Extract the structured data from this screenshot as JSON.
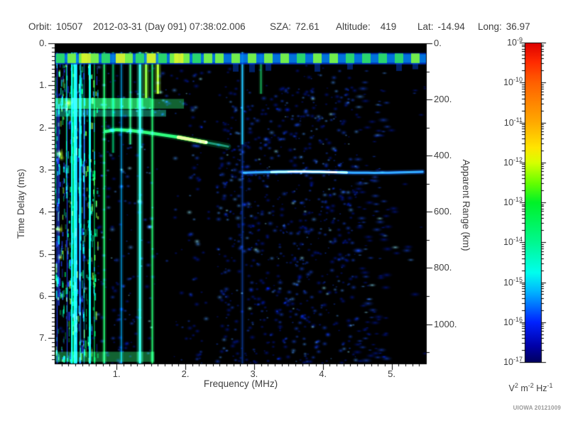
{
  "header": {
    "orbit_label": "Orbit:",
    "orbit_value": "10507",
    "datetime": "2012-03-31 (Day 091) 07:38:02.006",
    "sza_label": "SZA:",
    "sza_value": "72.61",
    "altitude_label": "Altitude:",
    "altitude_value": "419",
    "lat_label": "Lat:",
    "lat_value": "-14.94",
    "long_label": "Long:",
    "long_value": "36.97"
  },
  "footer": {
    "credit": "UIOWA 20121009"
  },
  "chart_data": {
    "type": "heatmap",
    "subtype": "radar-sounder-ionogram-spectrogram",
    "xlabel": "Frequency (MHz)",
    "ylabel": "Time Delay (ms)",
    "y2label": "Apparent Range (km)",
    "x_range_mhz": [
      0.1,
      5.5
    ],
    "x_ticks": [
      {
        "value": 1,
        "label": "1."
      },
      {
        "value": 2,
        "label": "2."
      },
      {
        "value": 3,
        "label": "3."
      },
      {
        "value": 4,
        "label": "4."
      },
      {
        "value": 5,
        "label": "5."
      }
    ],
    "y_range_ms": [
      0,
      7.6
    ],
    "y_ticks": [
      {
        "value": 0,
        "label": "0."
      },
      {
        "value": 1,
        "label": "1."
      },
      {
        "value": 2,
        "label": "2."
      },
      {
        "value": 3,
        "label": "3."
      },
      {
        "value": 4,
        "label": "4."
      },
      {
        "value": 5,
        "label": "5."
      },
      {
        "value": 6,
        "label": "6."
      },
      {
        "value": 7,
        "label": "7."
      }
    ],
    "y2_range_km": [
      0,
      1140
    ],
    "km_per_ms": 150,
    "y2_ticks": [
      {
        "value": 0,
        "label": "0."
      },
      {
        "value": 200,
        "label": "200."
      },
      {
        "value": 400,
        "label": "400."
      },
      {
        "value": 600,
        "label": "600."
      },
      {
        "value": 800,
        "label": "800."
      },
      {
        "value": 1000,
        "label": "1000."
      }
    ],
    "grid": false,
    "colorbar": {
      "scale": "log",
      "max_exponent": -9,
      "min_exponent": -17,
      "tick_exponents": [
        -9,
        -10,
        -11,
        -12,
        -13,
        -14,
        -15,
        -16,
        -17
      ],
      "units_parts": [
        {
          "base": "V",
          "exp": "2"
        },
        {
          "base": "m",
          "exp": "-2"
        },
        {
          "base": "Hz",
          "exp": "-1"
        }
      ],
      "gradient_stops": [
        {
          "pos": 0.0,
          "color": "#dd0000"
        },
        {
          "pos": 0.06,
          "color": "#ff2a00"
        },
        {
          "pos": 0.125,
          "color": "#ff6000"
        },
        {
          "pos": 0.25,
          "color": "#ffaa00"
        },
        {
          "pos": 0.33,
          "color": "#ffe600"
        },
        {
          "pos": 0.375,
          "color": "#d8ff00"
        },
        {
          "pos": 0.44,
          "color": "#66ff00"
        },
        {
          "pos": 0.5,
          "color": "#00f228"
        },
        {
          "pos": 0.625,
          "color": "#00f890"
        },
        {
          "pos": 0.72,
          "color": "#00ffee"
        },
        {
          "pos": 0.78,
          "color": "#00b4ff"
        },
        {
          "pos": 0.875,
          "color": "#0022ff"
        },
        {
          "pos": 0.95,
          "color": "#0000a8"
        },
        {
          "pos": 1.0,
          "color": "#000060"
        }
      ]
    },
    "features": {
      "seed": 20121009,
      "plot_background": "#000000",
      "top_gap_ms": [
        0,
        0.21
      ],
      "pulse_band": {
        "t0": 0.22,
        "t1": 0.5,
        "base_color": "rgba(0,60,220,0.8)",
        "cyan_color": "rgba(0,170,255,0.55)",
        "dash_colors": [
          "#2ee062",
          "#7dfc3c"
        ],
        "yellow_dash_color": "#d6f32a",
        "yellow_dash_freqs": [
          0.55,
          1.05,
          1.5,
          1.9
        ],
        "dense_below_mhz": 2.3,
        "drip_color": "rgba(0,80,255,0.45)"
      },
      "low_freq_noise": {
        "f0": 0.1,
        "f1": 0.72,
        "n_lines": 30,
        "n_segments": 520,
        "line_colors": [
          "#00e868",
          "#00ffcc",
          "#2040ff",
          "#90ff40"
        ]
      },
      "rfi_lines": [
        {
          "f": 0.82,
          "t0": 0.2,
          "t1": 7.6,
          "color": "#20d060",
          "w": 2,
          "a": 0.9
        },
        {
          "f": 0.95,
          "t0": 0.2,
          "t1": 2.6,
          "color": "#00c070",
          "w": 2,
          "a": 0.7
        },
        {
          "f": 1.07,
          "t0": 0.2,
          "t1": 7.6,
          "color": "#00b0ff",
          "w": 2,
          "a": 0.5
        },
        {
          "f": 1.2,
          "t0": 0.2,
          "t1": 2.4,
          "color": "#30e080",
          "w": 2,
          "a": 0.8
        },
        {
          "f": 1.34,
          "t0": 0.2,
          "t1": 7.6,
          "color": "#30ffd0",
          "w": 3,
          "a": 1.0
        },
        {
          "f": 1.43,
          "t0": 0.2,
          "t1": 1.3,
          "color": "#80ff40",
          "w": 3,
          "a": 0.9
        },
        {
          "f": 1.52,
          "t0": 0.2,
          "t1": 7.6,
          "color": "#20d060",
          "w": 2,
          "a": 0.85
        },
        {
          "f": 1.6,
          "t0": 0.2,
          "t1": 1.2,
          "color": "#a0ff30",
          "w": 3,
          "a": 0.9
        },
        {
          "f": 2.83,
          "t0": 0.2,
          "t1": 2.4,
          "color": "#20c0ff",
          "w": 2,
          "a": 0.8
        },
        {
          "f": 2.83,
          "t0": 2.4,
          "t1": 7.6,
          "color": "#1060ff",
          "w": 2,
          "a": 0.35
        },
        {
          "f": 3.1,
          "t0": 0.25,
          "t1": 1.2,
          "color": "#20ff80",
          "w": 2,
          "a": 0.5
        }
      ],
      "dark_bands": [
        {
          "f0": 1.56,
          "f1": 2.04,
          "t0": 1.7
        },
        {
          "f0": 2.24,
          "f1": 2.46,
          "t0": 0.5
        },
        {
          "f0": 4.95,
          "f1": 5.5,
          "t0": 0.5
        }
      ],
      "speckle": {
        "n": 3400,
        "palette": [
          "rgba(0,30,210,0.5)",
          "rgba(25,80,255,0.55)",
          "rgba(70,150,255,0.6)",
          "rgba(140,230,255,0.65)"
        ],
        "dense_f": [
          2.45,
          4.6
        ]
      },
      "horizontal_bands": [
        {
          "f0": 0.1,
          "f1": 1.5,
          "t0": 1.3,
          "t1": 1.56,
          "color": "#28dc6e",
          "alpha": 0.85
        },
        {
          "f0": 1.5,
          "f1": 1.98,
          "t0": 1.32,
          "t1": 1.55,
          "color": "#28dc6e",
          "alpha": 0.45
        },
        {
          "f0": 0.1,
          "f1": 1.72,
          "t0": 1.58,
          "t1": 1.74,
          "color": "#1ec8a0",
          "alpha": 0.5
        },
        {
          "f0": 0.1,
          "f1": 1.55,
          "t0": 7.32,
          "t1": 7.56,
          "color": "#28dc6e",
          "alpha": 0.45
        }
      ],
      "bright_blobs": [
        {
          "f": 0.17,
          "t": 2.62,
          "color": "#c8f020",
          "r": 8
        },
        {
          "f": 0.2,
          "t": 2.72,
          "color": "#a0e428",
          "r": 6
        },
        {
          "f": 0.17,
          "t": 4.42,
          "color": "#c8f020",
          "r": 7
        },
        {
          "f": 0.18,
          "t": 5.08,
          "color": "#b4ec24",
          "r": 6
        },
        {
          "f": 0.3,
          "t": 1.42,
          "color": "#c8f020",
          "r": 7
        }
      ],
      "echo_trace": {
        "points": [
          [
            0.85,
            2.09
          ],
          [
            1.0,
            2.05
          ],
          [
            1.2,
            2.07
          ],
          [
            1.45,
            2.12
          ],
          [
            1.7,
            2.18
          ],
          [
            1.9,
            2.23
          ],
          [
            2.1,
            2.29
          ],
          [
            2.3,
            2.35
          ],
          [
            2.5,
            2.41
          ],
          [
            2.62,
            2.45
          ]
        ],
        "color": "#2fd36a",
        "bright_color": "#b8ef2a",
        "bright_range": [
          1.82,
          2.28
        ],
        "tail_color": "rgba(60,220,200,0.5)"
      },
      "surface_echo": {
        "t": 3.06,
        "f0": 2.85,
        "f1": 5.5,
        "color": "#2c8cff",
        "bright_color": "#8fd9ff",
        "core_color": "#d0f4ff",
        "bright_range": [
          3.25,
          4.4
        ],
        "core_range": [
          3.5,
          4.2
        ]
      }
    }
  }
}
